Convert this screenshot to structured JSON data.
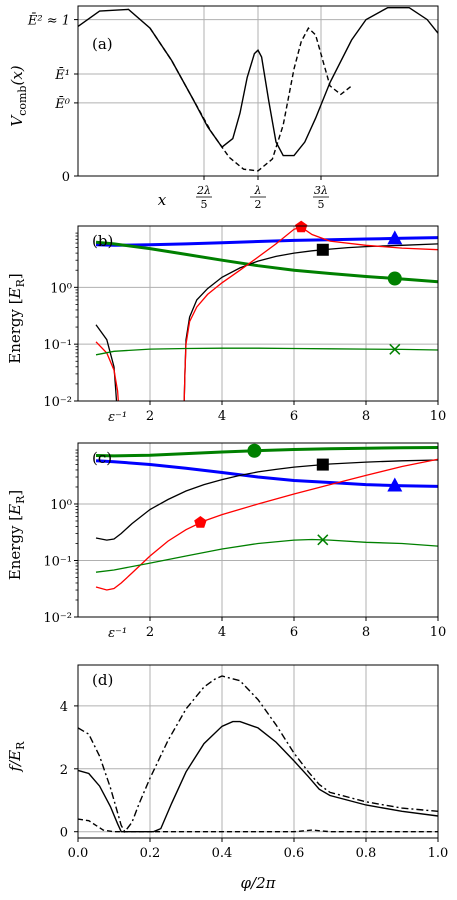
{
  "chart_data": [
    {
      "id": "a",
      "type": "line",
      "panel_label": "(a)",
      "ylabel": "V_comb(x)",
      "ylabel_parts": {
        "main": "V",
        "sub": "comb",
        "arg": "(x)"
      },
      "xlabel": "x",
      "xticks": [
        {
          "num": "2λ",
          "den": "5"
        },
        {
          "num": "λ",
          "den": "2"
        },
        {
          "num": "3λ",
          "den": "5"
        }
      ],
      "yticks": [
        "0",
        "Ē⁰",
        "Ē¹",
        "Ē² ≈ 1"
      ],
      "ylim": [
        0,
        1
      ],
      "grid": true,
      "series": [
        {
          "style": "solid",
          "color": "#000000",
          "x": [
            0,
            0.06,
            0.14,
            0.2,
            0.26,
            0.32,
            0.36,
            0.4,
            0.43,
            0.45,
            0.47,
            0.49,
            0.5,
            0.51,
            0.53,
            0.55,
            0.57,
            0.6,
            0.63,
            0.66,
            0.7,
            0.76,
            0.8,
            0.86,
            0.92,
            0.97,
            1.0
          ],
          "y": [
            0.88,
            0.97,
            0.98,
            0.87,
            0.68,
            0.45,
            0.29,
            0.17,
            0.22,
            0.37,
            0.58,
            0.72,
            0.74,
            0.7,
            0.44,
            0.2,
            0.12,
            0.12,
            0.2,
            0.34,
            0.55,
            0.8,
            0.92,
            0.99,
            0.99,
            0.92,
            0.84
          ]
        },
        {
          "style": "dashed",
          "color": "#000000",
          "x": [
            0.2,
            0.26,
            0.32,
            0.37,
            0.42,
            0.46,
            0.5,
            0.54,
            0.57,
            0.6,
            0.62,
            0.64,
            0.66,
            0.68,
            0.7,
            0.73,
            0.76
          ],
          "y": [
            0.87,
            0.68,
            0.45,
            0.26,
            0.11,
            0.04,
            0.03,
            0.1,
            0.3,
            0.63,
            0.79,
            0.87,
            0.83,
            0.68,
            0.53,
            0.48,
            0.53
          ]
        }
      ]
    },
    {
      "id": "b",
      "type": "line",
      "panel_label": "(b)",
      "ylabel": "Energy [E_R]",
      "ylabel_parts": {
        "main": "Energy [",
        "italic": "E",
        "sub": "R",
        "close": "]"
      },
      "yscale": "log",
      "ylim": [
        0.01,
        12
      ],
      "yticks": [
        "10⁻²",
        "10⁻¹",
        "10⁰"
      ],
      "xlim": [
        0,
        10
      ],
      "xticks": [
        "2",
        "4",
        "6",
        "8",
        "10"
      ],
      "x_annotation": "ε⁻¹",
      "grid": true,
      "series": [
        {
          "color": "#0000ff",
          "width": 3,
          "marker": "triangle",
          "marker_x": 8.8,
          "x": [
            0.5,
            1,
            2,
            3,
            4,
            5,
            6,
            7,
            8,
            9,
            10
          ],
          "y": [
            5.6,
            5.5,
            5.6,
            5.8,
            6.1,
            6.4,
            6.7,
            6.9,
            7.1,
            7.3,
            7.5
          ]
        },
        {
          "color": "#008000",
          "width": 3,
          "marker": "circle",
          "marker_x": 8.8,
          "x": [
            0.5,
            1,
            2,
            3,
            4,
            5,
            6,
            7,
            8,
            9,
            10
          ],
          "y": [
            6.2,
            5.8,
            4.8,
            3.8,
            3.0,
            2.4,
            2.0,
            1.75,
            1.55,
            1.4,
            1.25
          ]
        },
        {
          "color": "#000000",
          "width": 1.3,
          "marker": "square",
          "marker_x": 6.8,
          "x": [
            0.5,
            0.8,
            1.0,
            1.05,
            1.07
          ],
          "y": [
            0.22,
            0.12,
            0.04,
            0.015,
            0.01
          ]
        },
        {
          "color": "#000000",
          "width": 1.3,
          "x": [
            2.95,
            2.97,
            3.0,
            3.1,
            3.3,
            3.6,
            4,
            4.5,
            5,
            5.5,
            6,
            6.5,
            7,
            7.5,
            8,
            9,
            10
          ],
          "y": [
            0.01,
            0.03,
            0.12,
            0.3,
            0.6,
            0.95,
            1.5,
            2.2,
            2.9,
            3.5,
            4.0,
            4.4,
            4.7,
            5.0,
            5.2,
            5.5,
            5.8
          ]
        },
        {
          "color": "#ff0000",
          "width": 1.3,
          "marker": "pentagon",
          "marker_x": 6.2,
          "x": [
            0.5,
            0.8,
            1.0,
            1.1,
            1.12
          ],
          "y": [
            0.11,
            0.07,
            0.035,
            0.015,
            0.01
          ]
        },
        {
          "color": "#ff0000",
          "width": 1.3,
          "x": [
            2.95,
            2.97,
            3.0,
            3.1,
            3.3,
            3.6,
            4,
            4.5,
            5,
            5.5,
            6,
            6.2,
            6.5,
            7,
            8,
            9,
            10
          ],
          "y": [
            0.01,
            0.03,
            0.1,
            0.25,
            0.45,
            0.75,
            1.2,
            2.0,
            3.4,
            5.8,
            10.5,
            11.5,
            8.5,
            6.5,
            5.5,
            4.9,
            4.6
          ]
        },
        {
          "color": "#008000",
          "width": 1.3,
          "marker": "x",
          "marker_x": 8.8,
          "x": [
            0.5,
            1,
            2,
            3,
            4,
            5,
            6,
            7,
            8,
            9,
            10
          ],
          "y": [
            0.065,
            0.075,
            0.082,
            0.084,
            0.085,
            0.085,
            0.084,
            0.083,
            0.082,
            0.081,
            0.079
          ]
        }
      ]
    },
    {
      "id": "c",
      "type": "line",
      "panel_label": "(c)",
      "ylabel": "Energy [E_R]",
      "ylabel_parts": {
        "main": "Energy [",
        "italic": "E",
        "sub": "R",
        "close": "]"
      },
      "yscale": "log",
      "ylim": [
        0.01,
        12
      ],
      "yticks": [
        "10⁻²",
        "10⁻¹",
        "10⁰"
      ],
      "xlim": [
        0,
        10
      ],
      "xticks": [
        "2",
        "4",
        "6",
        "8",
        "10"
      ],
      "x_annotation": "ε⁻¹",
      "grid": true,
      "series": [
        {
          "color": "#008000",
          "width": 3,
          "marker": "circle",
          "marker_x": 4.9,
          "x": [
            0.5,
            1,
            2,
            3,
            4,
            5,
            6,
            7,
            8,
            9,
            10
          ],
          "y": [
            7.2,
            7.1,
            7.3,
            7.8,
            8.3,
            8.8,
            9.2,
            9.5,
            9.7,
            9.9,
            10.0
          ]
        },
        {
          "color": "#0000ff",
          "width": 3,
          "marker": "triangle",
          "marker_x": 8.8,
          "x": [
            0.5,
            1,
            2,
            3,
            4,
            5,
            6,
            7,
            8,
            9,
            10
          ],
          "y": [
            5.8,
            5.6,
            5.0,
            4.3,
            3.6,
            3.0,
            2.6,
            2.4,
            2.2,
            2.1,
            2.05
          ]
        },
        {
          "color": "#000000",
          "width": 1.3,
          "marker": "square",
          "marker_x": 6.8,
          "x": [
            0.5,
            0.8,
            1.0,
            1.2,
            1.5,
            2,
            2.5,
            3,
            3.5,
            4,
            4.5,
            5,
            5.5,
            6,
            7,
            8,
            9,
            10
          ],
          "y": [
            0.25,
            0.23,
            0.24,
            0.3,
            0.45,
            0.8,
            1.2,
            1.7,
            2.2,
            2.7,
            3.2,
            3.7,
            4.1,
            4.5,
            5.1,
            5.5,
            5.8,
            6.0
          ]
        },
        {
          "color": "#ff0000",
          "width": 1.3,
          "marker": "pentagon",
          "marker_x": 3.4,
          "x": [
            0.5,
            0.8,
            1.0,
            1.2,
            1.5,
            2,
            2.5,
            3,
            3.5,
            4,
            5,
            6,
            7,
            8,
            9,
            10
          ],
          "y": [
            0.034,
            0.03,
            0.032,
            0.04,
            0.06,
            0.12,
            0.22,
            0.35,
            0.5,
            0.65,
            1.0,
            1.5,
            2.2,
            3.2,
            4.6,
            6.2
          ]
        },
        {
          "color": "#008000",
          "width": 1.3,
          "marker": "x",
          "marker_x": 6.8,
          "x": [
            0.5,
            1,
            2,
            3,
            4,
            5,
            6,
            6.5,
            7,
            8,
            9,
            10
          ],
          "y": [
            0.062,
            0.068,
            0.09,
            0.12,
            0.16,
            0.2,
            0.23,
            0.235,
            0.23,
            0.21,
            0.2,
            0.18
          ]
        }
      ]
    },
    {
      "id": "d",
      "type": "line",
      "panel_label": "(d)",
      "ylabel": "f/E_R",
      "ylabel_parts": {
        "main": "f/E",
        "sub": "R"
      },
      "xlabel": "φ/2π",
      "xlim": [
        0,
        1
      ],
      "ylim": [
        -0.2,
        5.3
      ],
      "xticks": [
        "0.0",
        "0.2",
        "0.4",
        "0.6",
        "0.8",
        "1.0"
      ],
      "yticks": [
        "0",
        "2",
        "4"
      ],
      "grid": true,
      "series": [
        {
          "style": "solid",
          "color": "#000000",
          "x": [
            0,
            0.03,
            0.06,
            0.09,
            0.11,
            0.12,
            0.16,
            0.2,
            0.21,
            0.23,
            0.26,
            0.3,
            0.35,
            0.4,
            0.43,
            0.45,
            0.5,
            0.55,
            0.6,
            0.64,
            0.67,
            0.7,
            0.8,
            0.9,
            1.0
          ],
          "y": [
            1.95,
            1.85,
            1.45,
            0.8,
            0.25,
            0,
            0,
            0,
            0,
            0.1,
            0.9,
            1.9,
            2.8,
            3.35,
            3.5,
            3.5,
            3.3,
            2.85,
            2.25,
            1.75,
            1.35,
            1.15,
            0.85,
            0.65,
            0.5
          ]
        },
        {
          "style": "dashdot",
          "color": "#000000",
          "x": [
            0,
            0.03,
            0.06,
            0.09,
            0.11,
            0.12,
            0.13,
            0.15,
            0.17,
            0.2,
            0.25,
            0.3,
            0.35,
            0.38,
            0.4,
            0.45,
            0.5,
            0.55,
            0.6,
            0.64,
            0.67,
            0.7,
            0.8,
            0.9,
            1.0
          ],
          "y": [
            3.3,
            3.1,
            2.4,
            1.4,
            0.6,
            0.2,
            0,
            0.3,
            0.9,
            1.7,
            2.9,
            3.9,
            4.6,
            4.85,
            4.95,
            4.8,
            4.2,
            3.4,
            2.5,
            1.9,
            1.5,
            1.25,
            0.95,
            0.75,
            0.65
          ]
        },
        {
          "style": "dashed",
          "color": "#000000",
          "x": [
            0,
            0.03,
            0.05,
            0.07,
            0.1,
            0.3,
            0.5,
            0.6,
            0.65,
            0.7,
            0.8,
            1.0
          ],
          "y": [
            0.4,
            0.35,
            0.2,
            0.05,
            0,
            0,
            0,
            0,
            0.05,
            0,
            0,
            0
          ]
        }
      ]
    }
  ]
}
